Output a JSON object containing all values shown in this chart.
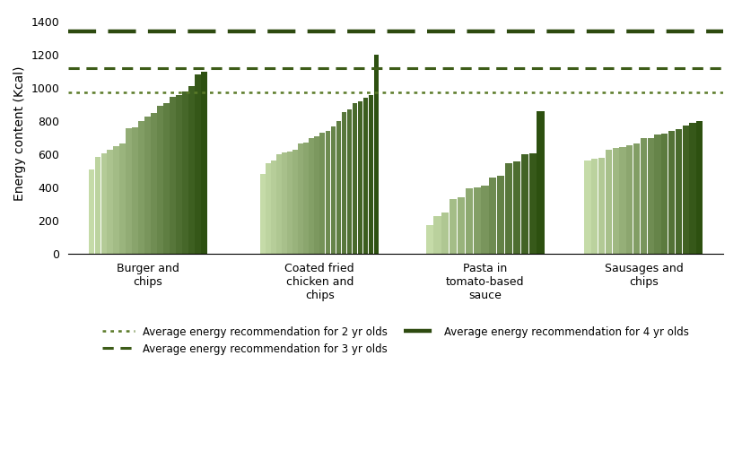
{
  "categories": [
    "Burger and\nchips",
    "Coated fried\nchicken and\nchips",
    "Pasta in\ntomato-based\nsauce",
    "Sausages and\nchips"
  ],
  "bar_groups": {
    "Burger and\nchips": [
      510,
      585,
      605,
      625,
      650,
      665,
      755,
      765,
      800,
      830,
      850,
      890,
      910,
      945,
      960,
      980,
      1010,
      1080,
      1100
    ],
    "Coated fried\nchicken and\nchips": [
      480,
      545,
      560,
      600,
      610,
      615,
      630,
      665,
      670,
      700,
      710,
      730,
      740,
      770,
      800,
      855,
      870,
      910,
      920,
      940,
      960,
      1200
    ],
    "Pasta in\ntomato-based\nsauce": [
      175,
      225,
      250,
      330,
      340,
      395,
      400,
      410,
      460,
      470,
      545,
      555,
      600,
      605,
      860
    ],
    "Sausages and\nchips": [
      560,
      575,
      580,
      630,
      640,
      645,
      655,
      665,
      695,
      700,
      720,
      725,
      740,
      750,
      775,
      790,
      800
    ]
  },
  "ref_lines": [
    {
      "value": 975,
      "style": "dotted",
      "color": "#5a7a28",
      "linewidth": 1.8,
      "label": "Average energy recommendation for 2 yr olds"
    },
    {
      "value": 1120,
      "style": "dashed_small",
      "color": "#3d5c18",
      "linewidth": 2.2,
      "label": "Average energy recommendation for 3 yr olds"
    },
    {
      "value": 1340,
      "style": "dashed_large",
      "color": "#2d4a0f",
      "linewidth": 3.2,
      "label": "Average energy recommendation for 4 yr olds"
    }
  ],
  "ylabel": "Energy content (Kcal)",
  "ylim": [
    0,
    1450
  ],
  "yticks": [
    0,
    200,
    400,
    600,
    800,
    1000,
    1200,
    1400
  ],
  "light_green": "#c5dba8",
  "dark_green": "#2d5010",
  "background_color": "#ffffff",
  "group_centers": [
    1.0,
    2.3,
    3.55,
    4.75
  ],
  "group_width": 0.9
}
